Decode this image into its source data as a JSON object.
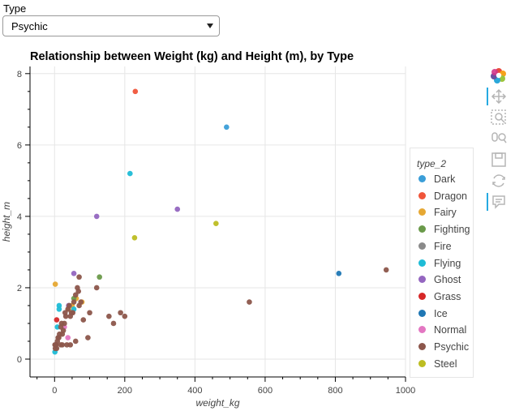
{
  "filter": {
    "label": "Type",
    "selected": "Psychic"
  },
  "toolbar": {
    "icons": [
      "bokeh-logo-icon",
      "pan-icon",
      "box-zoom-icon",
      "wheel-zoom-icon",
      "save-icon",
      "reset-icon",
      "hover-icon"
    ]
  },
  "chart_data": {
    "type": "scatter",
    "title": "Relationship between Weight (kg) and Height (m), by Type",
    "xlabel": "weight_kg",
    "ylabel": "height_m",
    "xlim": [
      -70,
      1000
    ],
    "ylim": [
      -0.5,
      8.2
    ],
    "xticks": [
      "0",
      "200",
      "400",
      "600",
      "800",
      "1000"
    ],
    "yticks": [
      "0",
      "2",
      "4",
      "6",
      "8"
    ],
    "grid": true,
    "legend": {
      "title": "type_2",
      "position": "right"
    },
    "series": [
      {
        "name": "Dark",
        "color": "#3b9ed8",
        "points": [
          [
            490,
            6.5
          ]
        ]
      },
      {
        "name": "Dragon",
        "color": "#f0553a",
        "points": [
          [
            230,
            7.5
          ]
        ]
      },
      {
        "name": "Fairy",
        "color": "#e6a833",
        "points": [
          [
            2,
            2.1
          ],
          [
            40,
            1.4
          ],
          [
            50,
            1.5
          ],
          [
            62,
            1.7
          ],
          [
            78,
            1.6
          ]
        ]
      },
      {
        "name": "Fighting",
        "color": "#6a9a4a",
        "points": [
          [
            128,
            2.3
          ],
          [
            55,
            1.7
          ]
        ]
      },
      {
        "name": "Fire",
        "color": "#8a8a8a",
        "points": []
      },
      {
        "name": "Flying",
        "color": "#1ebcd6",
        "points": [
          [
            215,
            5.2
          ],
          [
            13,
            1.4
          ],
          [
            13,
            1.5
          ],
          [
            8,
            0.9
          ],
          [
            1,
            0.2
          ],
          [
            55,
            1.4
          ]
        ]
      },
      {
        "name": "Ghost",
        "color": "#9466c0",
        "points": [
          [
            120,
            4.0
          ],
          [
            350,
            4.2
          ],
          [
            55,
            2.4
          ],
          [
            40,
            1.5
          ]
        ]
      },
      {
        "name": "Grass",
        "color": "#d62728",
        "points": [
          [
            6,
            1.1
          ]
        ]
      },
      {
        "name": "Ice",
        "color": "#1f77b4",
        "points": [
          [
            810,
            2.4
          ]
        ]
      },
      {
        "name": "Normal",
        "color": "#e377c2",
        "points": [
          [
            28,
            0.9
          ],
          [
            38,
            0.6
          ]
        ]
      },
      {
        "name": "Psychic",
        "color": "#8c564b",
        "points": [
          [
            945,
            2.5
          ],
          [
            555,
            1.6
          ],
          [
            200,
            1.2
          ],
          [
            188,
            1.3
          ],
          [
            168,
            1.0
          ],
          [
            155,
            1.2
          ],
          [
            120,
            2.0
          ],
          [
            100,
            1.3
          ],
          [
            95,
            0.6
          ],
          [
            82,
            1.1
          ],
          [
            75,
            1.6
          ],
          [
            70,
            1.5
          ],
          [
            70,
            2.3
          ],
          [
            68,
            1.9
          ],
          [
            65,
            2.0
          ],
          [
            60,
            1.8
          ],
          [
            60,
            0.5
          ],
          [
            55,
            1.6
          ],
          [
            52,
            1.3
          ],
          [
            48,
            1.3
          ],
          [
            45,
            1.2
          ],
          [
            42,
            1.5
          ],
          [
            38,
            1.4
          ],
          [
            35,
            0.4
          ],
          [
            32,
            1.2
          ],
          [
            30,
            1.3
          ],
          [
            28,
            1.0
          ],
          [
            25,
            0.8
          ],
          [
            22,
            0.7
          ],
          [
            20,
            1.0
          ],
          [
            18,
            0.9
          ],
          [
            14,
            0.7
          ],
          [
            12,
            0.6
          ],
          [
            10,
            0.6
          ],
          [
            8,
            0.5
          ],
          [
            6,
            0.3
          ],
          [
            4,
            0.4
          ],
          [
            3,
            0.4
          ],
          [
            2,
            0.3
          ],
          [
            1,
            0.4
          ],
          [
            18,
            0.4
          ],
          [
            22,
            0.4
          ],
          [
            45,
            0.4
          ]
        ]
      },
      {
        "name": "Steel",
        "color": "#bdbd22",
        "points": [
          [
            228,
            3.4
          ],
          [
            460,
            3.8
          ]
        ]
      }
    ]
  }
}
